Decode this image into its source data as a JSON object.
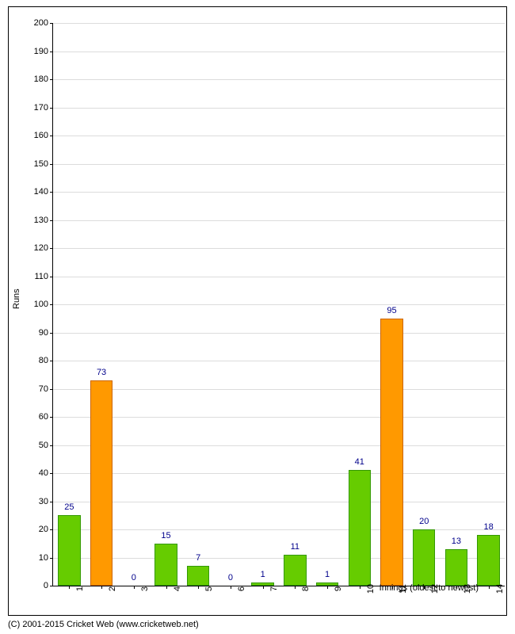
{
  "chart": {
    "type": "bar",
    "y_axis_title": "Runs",
    "x_axis_title": "Innings (oldest to newest)",
    "copyright": "(C) 2001-2015 Cricket Web (www.cricketweb.net)",
    "ylim": [
      0,
      200
    ],
    "ytick_step": 10,
    "background_color": "#ffffff",
    "grid_color": "#dcdcdc",
    "axis_color": "#000000",
    "label_color": "#00008b",
    "text_color": "#000000",
    "font_family": "Verdana, Arial, sans-serif",
    "label_fontsize": 11,
    "bar_width_ratio": 0.7,
    "bars": [
      {
        "category": "1",
        "value": 25,
        "color": "#66cc00",
        "border": "#339900"
      },
      {
        "category": "2",
        "value": 73,
        "color": "#ff9900",
        "border": "#cc6600"
      },
      {
        "category": "3",
        "value": 0,
        "color": "#66cc00",
        "border": "#339900"
      },
      {
        "category": "4",
        "value": 15,
        "color": "#66cc00",
        "border": "#339900"
      },
      {
        "category": "5",
        "value": 7,
        "color": "#66cc00",
        "border": "#339900"
      },
      {
        "category": "6",
        "value": 0,
        "color": "#66cc00",
        "border": "#339900"
      },
      {
        "category": "7",
        "value": 1,
        "color": "#66cc00",
        "border": "#339900"
      },
      {
        "category": "8",
        "value": 11,
        "color": "#66cc00",
        "border": "#339900"
      },
      {
        "category": "9",
        "value": 1,
        "color": "#66cc00",
        "border": "#339900"
      },
      {
        "category": "10",
        "value": 41,
        "color": "#66cc00",
        "border": "#339900"
      },
      {
        "category": "11",
        "value": 95,
        "color": "#ff9900",
        "border": "#cc6600"
      },
      {
        "category": "12",
        "value": 20,
        "color": "#66cc00",
        "border": "#339900"
      },
      {
        "category": "13",
        "value": 13,
        "color": "#66cc00",
        "border": "#339900"
      },
      {
        "category": "14",
        "value": 18,
        "color": "#66cc00",
        "border": "#339900"
      }
    ]
  }
}
